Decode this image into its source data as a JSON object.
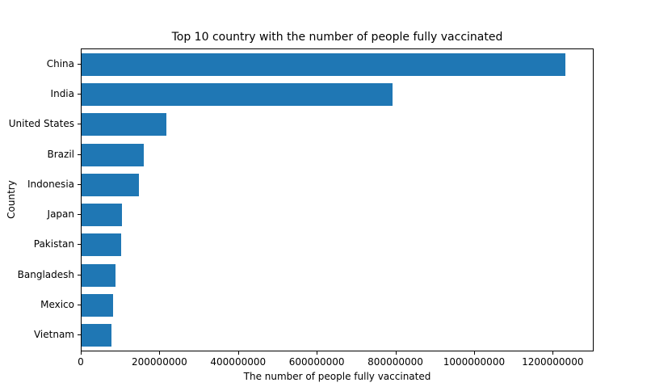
{
  "figure": {
    "background": "#ffffff",
    "text_color": "#000000"
  },
  "chart_data": {
    "type": "bar",
    "orientation": "horizontal",
    "title": "Top 10 country with the number of people fully vaccinated",
    "xlabel": "The number of people fully vaccinated",
    "ylabel": "Country",
    "categories": [
      "China",
      "India",
      "United States",
      "Brazil",
      "Indonesia",
      "Japan",
      "Pakistan",
      "Bangladesh",
      "Mexico",
      "Vietnam"
    ],
    "values": [
      1230000000,
      790000000,
      215000000,
      158000000,
      146000000,
      103000000,
      100000000,
      86000000,
      80000000,
      76000000
    ],
    "xlim": [
      0,
      1300000000
    ],
    "xticks": [
      0,
      200000000,
      400000000,
      600000000,
      800000000,
      1000000000,
      1200000000
    ],
    "xtick_labels": [
      "0",
      "200000000",
      "400000000",
      "600000000",
      "800000000",
      "1000000000",
      "1200000000"
    ],
    "bar_color": "#1f77b4",
    "grid": false,
    "legend": null
  }
}
